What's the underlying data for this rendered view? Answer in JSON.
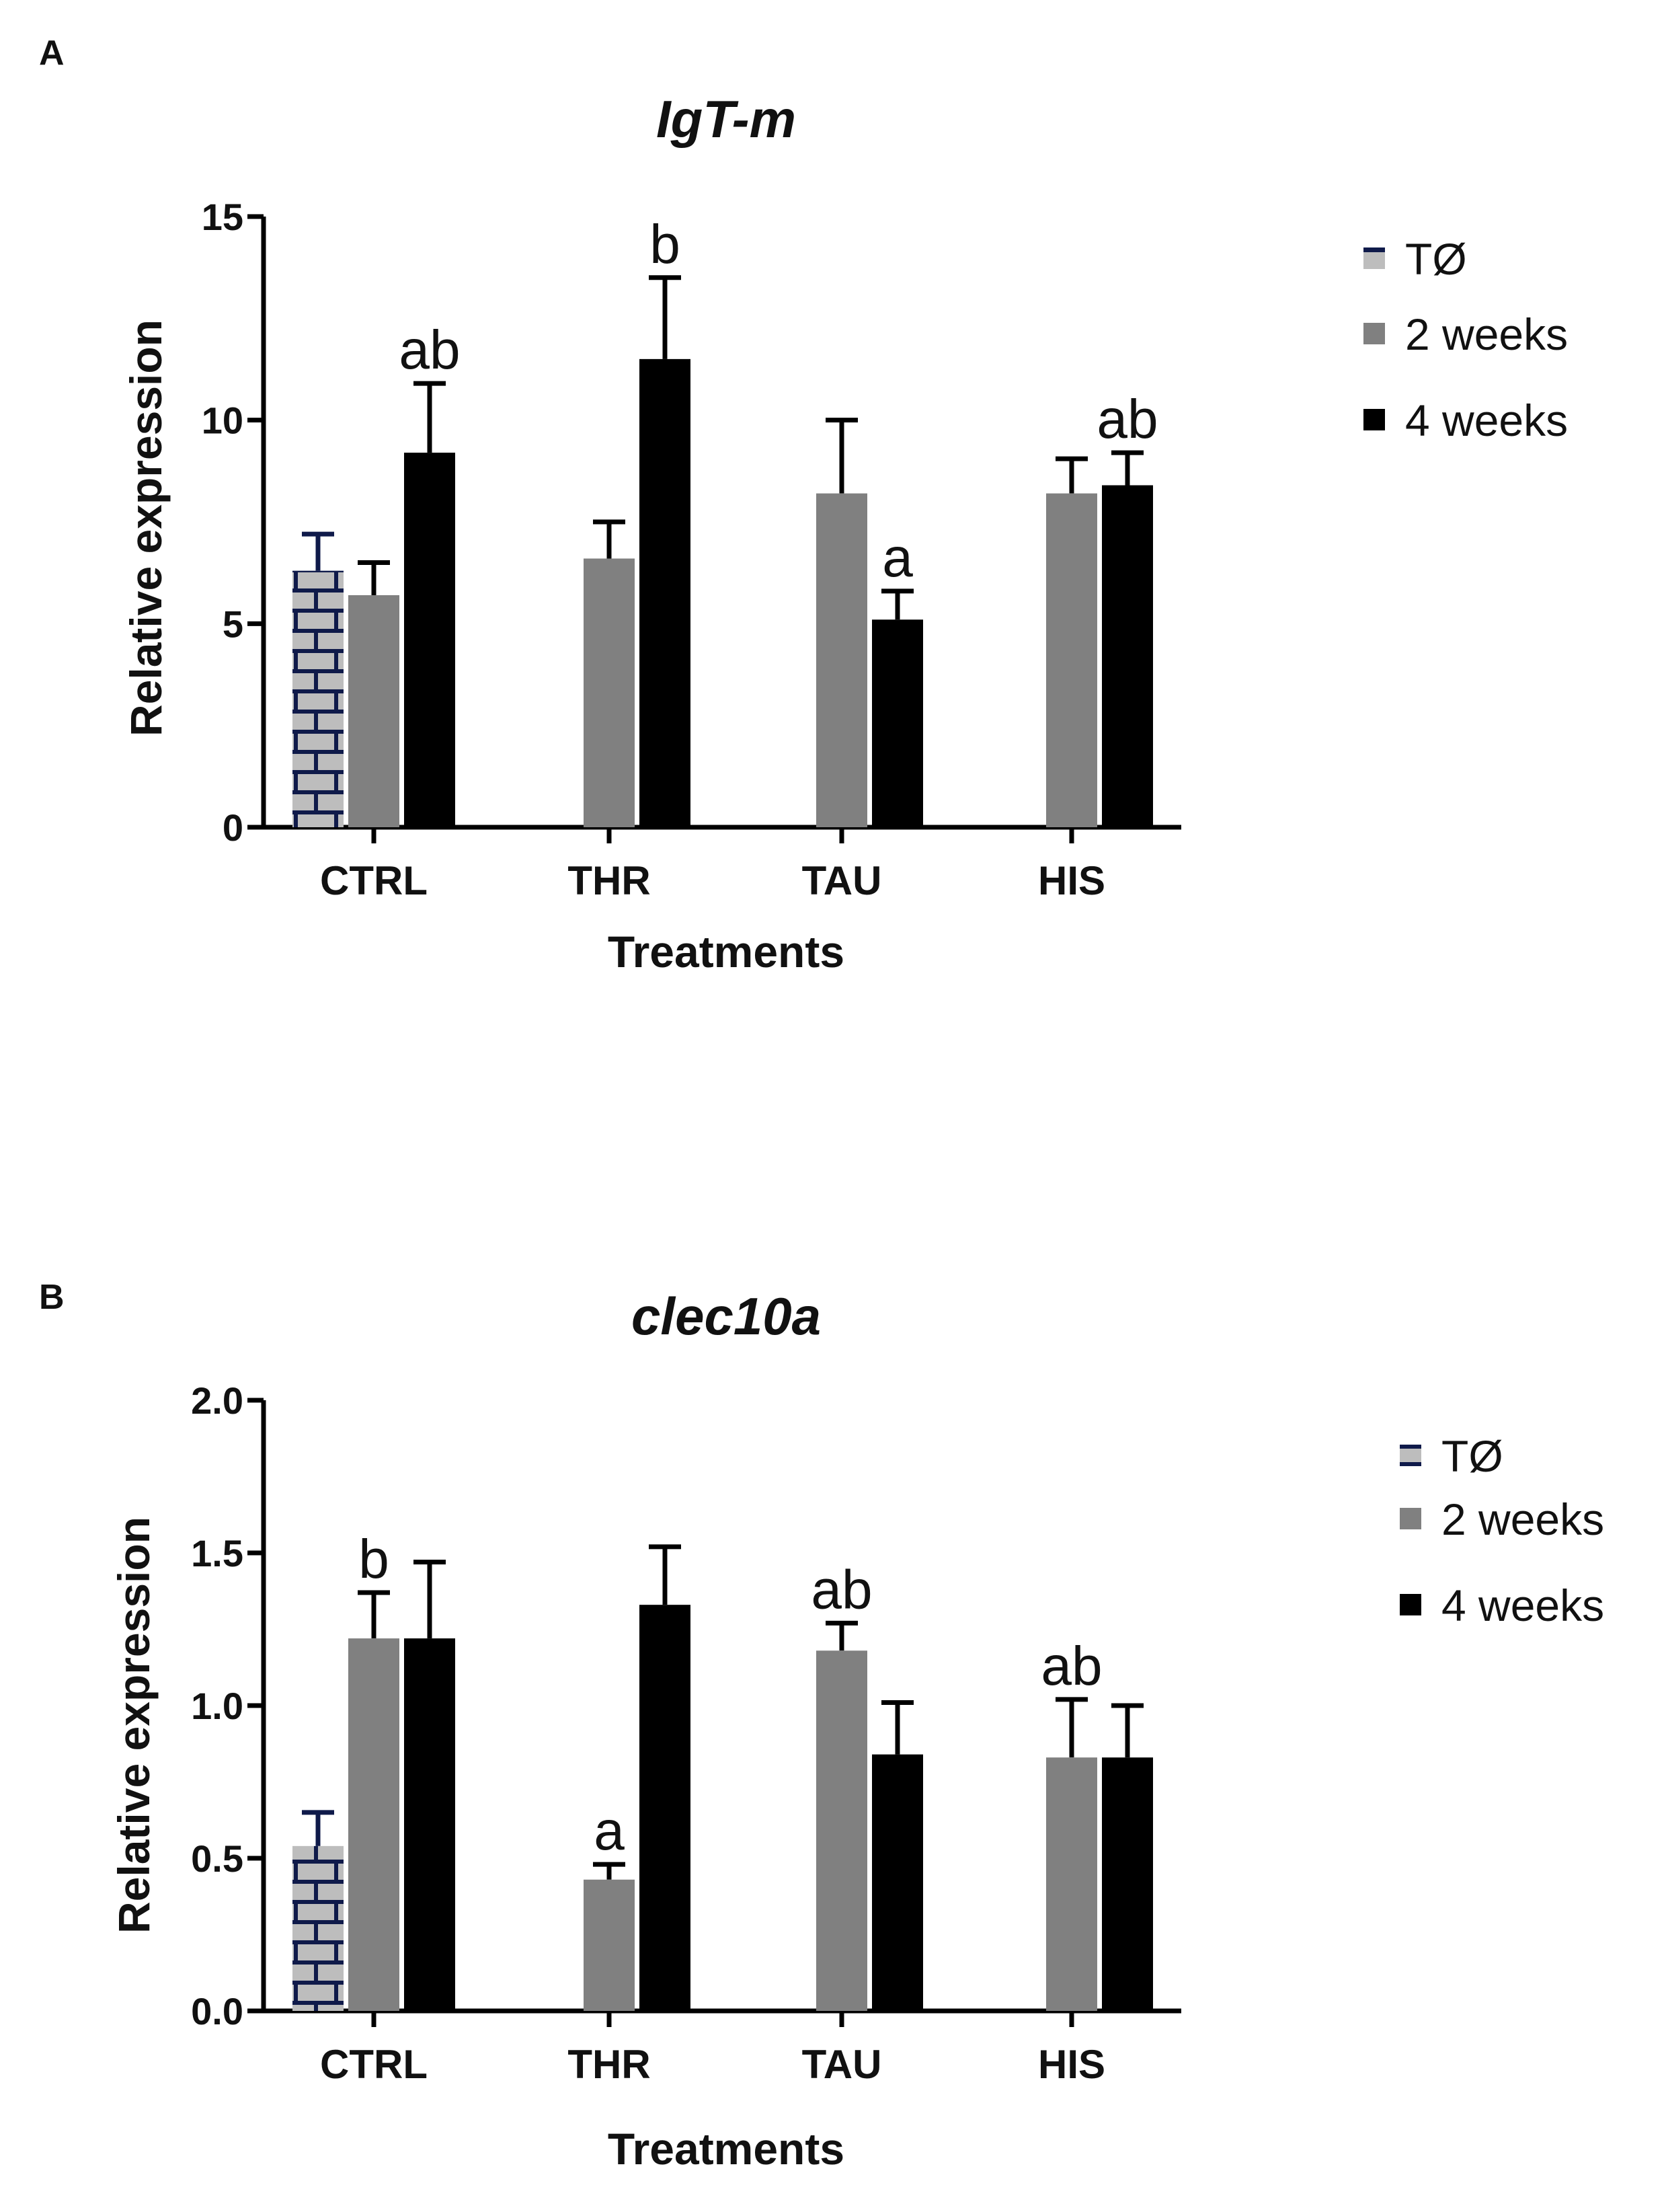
{
  "chart_data": [
    {
      "panel": "A",
      "type": "bar",
      "title": "IgT-m",
      "xlabel": "Treatments",
      "ylabel": "Relative expression",
      "ylim": [
        0,
        15
      ],
      "yticks": [
        "0",
        "5",
        "10",
        "15"
      ],
      "categories": [
        "CTRL",
        "THR",
        "TAU",
        "HIS"
      ],
      "legend_position": "right",
      "series": [
        {
          "name": "TØ",
          "color": "#bdbdbd",
          "pattern": "navy-brick",
          "values": [
            6.3,
            null,
            null,
            null
          ],
          "errors": [
            0.9,
            null,
            null,
            null
          ],
          "labels": [
            "",
            "",
            "",
            ""
          ]
        },
        {
          "name": "2 weeks",
          "color": "#808080",
          "values": [
            5.7,
            6.6,
            8.2,
            8.2
          ],
          "errors": [
            0.8,
            0.9,
            1.8,
            0.85
          ],
          "labels": [
            "",
            "",
            "",
            ""
          ]
        },
        {
          "name": "4 weeks",
          "color": "#000000",
          "values": [
            9.2,
            11.5,
            5.1,
            8.4
          ],
          "errors": [
            1.7,
            2.0,
            0.7,
            0.8
          ],
          "labels": [
            "ab",
            "b",
            "a",
            "ab"
          ]
        }
      ]
    },
    {
      "panel": "B",
      "type": "bar",
      "title": "clec10a",
      "xlabel": "Treatments",
      "ylabel": "Relative expression",
      "ylim": [
        0,
        2.0
      ],
      "yticks": [
        "0.0",
        "0.5",
        "1.0",
        "1.5",
        "2.0"
      ],
      "categories": [
        "CTRL",
        "THR",
        "TAU",
        "HIS"
      ],
      "legend_position": "right",
      "series": [
        {
          "name": "TØ",
          "color": "#bdbdbd",
          "pattern": "navy-brick",
          "values": [
            0.54,
            null,
            null,
            null
          ],
          "errors": [
            0.11,
            null,
            null,
            null
          ],
          "labels": [
            "",
            "",
            "",
            ""
          ]
        },
        {
          "name": "2 weeks",
          "color": "#808080",
          "values": [
            1.22,
            0.43,
            1.18,
            0.83
          ],
          "errors": [
            0.15,
            0.05,
            0.09,
            0.19
          ],
          "labels": [
            "b",
            "a",
            "ab",
            "ab"
          ]
        },
        {
          "name": "4 weeks",
          "color": "#000000",
          "values": [
            1.22,
            1.33,
            0.84,
            0.83
          ],
          "errors": [
            0.25,
            0.19,
            0.17,
            0.17
          ],
          "labels": [
            "",
            "",
            "",
            ""
          ]
        }
      ]
    }
  ]
}
